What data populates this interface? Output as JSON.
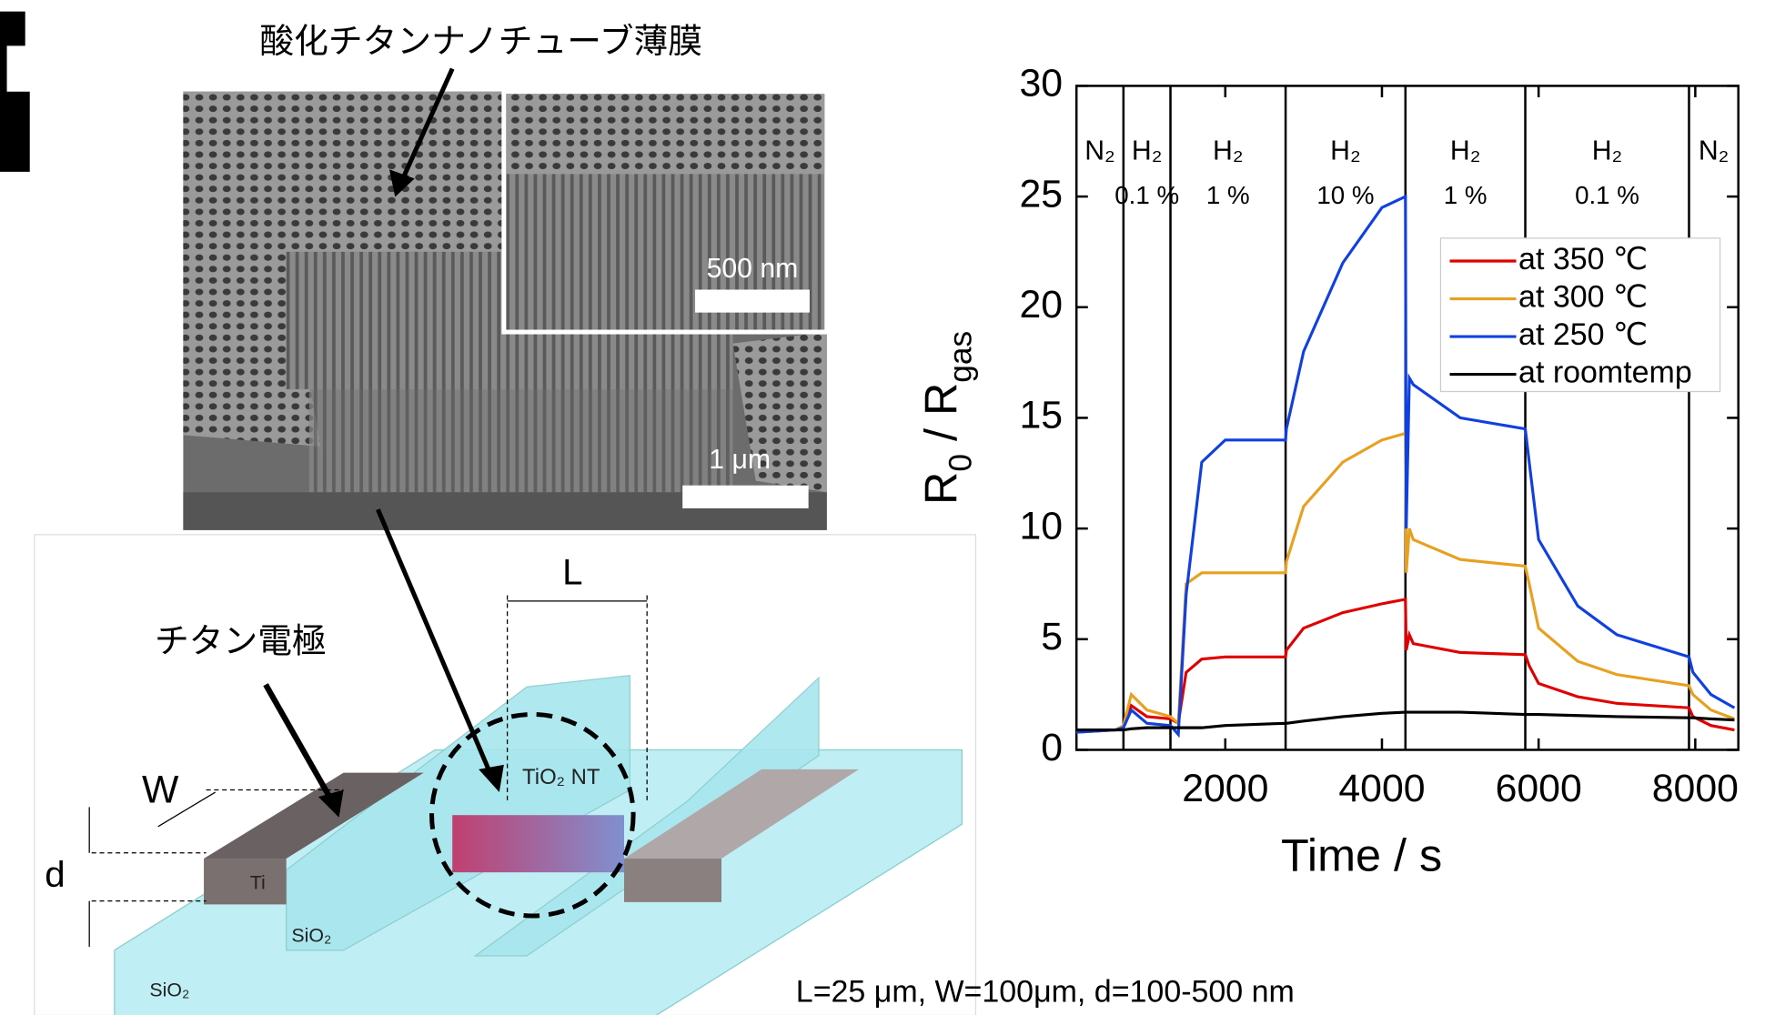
{
  "chart_data": {
    "type": "line",
    "y_label": [
      "R",
      "0",
      " / R",
      "gas"
    ],
    "x_label": "Time / s",
    "x": [
      100,
      600,
      700,
      800,
      1000,
      1300,
      1400,
      1500,
      1700,
      2000,
      2770,
      2780,
      3000,
      3500,
      4000,
      4300,
      4310,
      4350,
      4400,
      5000,
      5830,
      5880,
      6000,
      6500,
      7000,
      7920,
      7970,
      8200,
      8500
    ],
    "series": [
      {
        "name": "at 350 ℃",
        "color": "#e00000",
        "values": [
          0.8,
          0.9,
          1.0,
          2.0,
          1.5,
          1.4,
          1.2,
          3.5,
          4.1,
          4.2,
          4.2,
          4.5,
          5.5,
          6.2,
          6.6,
          6.8,
          4.5,
          5.2,
          4.8,
          4.4,
          4.3,
          3.8,
          3.0,
          2.4,
          2.1,
          1.9,
          1.5,
          1.1,
          0.9
        ]
      },
      {
        "name": "at 300 ℃",
        "color": "#e8a020",
        "values": [
          0.8,
          0.9,
          1.1,
          2.5,
          1.8,
          1.5,
          1.2,
          7.5,
          8.0,
          8.0,
          8.0,
          8.5,
          11,
          13,
          14,
          14.3,
          8,
          10,
          9.5,
          8.6,
          8.3,
          7.5,
          5.5,
          4.0,
          3.4,
          2.9,
          2.5,
          1.8,
          1.4
        ]
      },
      {
        "name": "at 250 ℃",
        "color": "#1040e0",
        "values": [
          0.8,
          0.9,
          1.0,
          1.8,
          1.2,
          1.1,
          0.7,
          7,
          13,
          14,
          14,
          14.5,
          18,
          22,
          24.5,
          25,
          10,
          16.8,
          16.5,
          15,
          14.5,
          13,
          9.5,
          6.5,
          5.2,
          4.2,
          3.5,
          2.5,
          1.9
        ]
      },
      {
        "name": "at roomtemp",
        "color": "#000000",
        "values": [
          0.9,
          0.9,
          0.9,
          0.95,
          1.0,
          1.0,
          1.0,
          1.0,
          1.0,
          1.1,
          1.2,
          1.2,
          1.3,
          1.5,
          1.65,
          1.7,
          1.7,
          1.7,
          1.7,
          1.7,
          1.6,
          1.6,
          1.6,
          1.55,
          1.5,
          1.45,
          1.45,
          1.4,
          1.35
        ]
      }
    ],
    "xlim": [
      100,
      8550
    ],
    "xticks": [
      2000,
      4000,
      6000,
      8000
    ],
    "ylim": [
      0,
      30
    ],
    "yticks": [
      0,
      5,
      10,
      15,
      20,
      25,
      30
    ],
    "switch_times": [
      700,
      1300,
      2770,
      4300,
      5830,
      7920
    ],
    "phases": [
      {
        "gas": "N₂"
      },
      {
        "gas": "H₂",
        "conc": "0.1 %"
      },
      {
        "gas": "H₂",
        "conc": "1 %"
      },
      {
        "gas": "H₂",
        "conc": "10 %"
      },
      {
        "gas": "H₂",
        "conc": "1 %"
      },
      {
        "gas": "H₂",
        "conc": "0.1 %"
      },
      {
        "gas": "N₂"
      }
    ],
    "legend": "upper right"
  },
  "sem": {
    "caption": "酸化チタンナノチューブ薄膜",
    "inset_scale": "500 nm",
    "scale": "1 μm"
  },
  "diagram": {
    "electrode": "チタン電極",
    "L": "L",
    "W": "W",
    "d": "d",
    "ti": "Ti",
    "sio2_wall": "SiO₂",
    "sio2_base": "SiO₂",
    "tio2": "TiO₂ NT",
    "footnote": "L=25 μm, W=100μm, d=100-500 nm"
  }
}
